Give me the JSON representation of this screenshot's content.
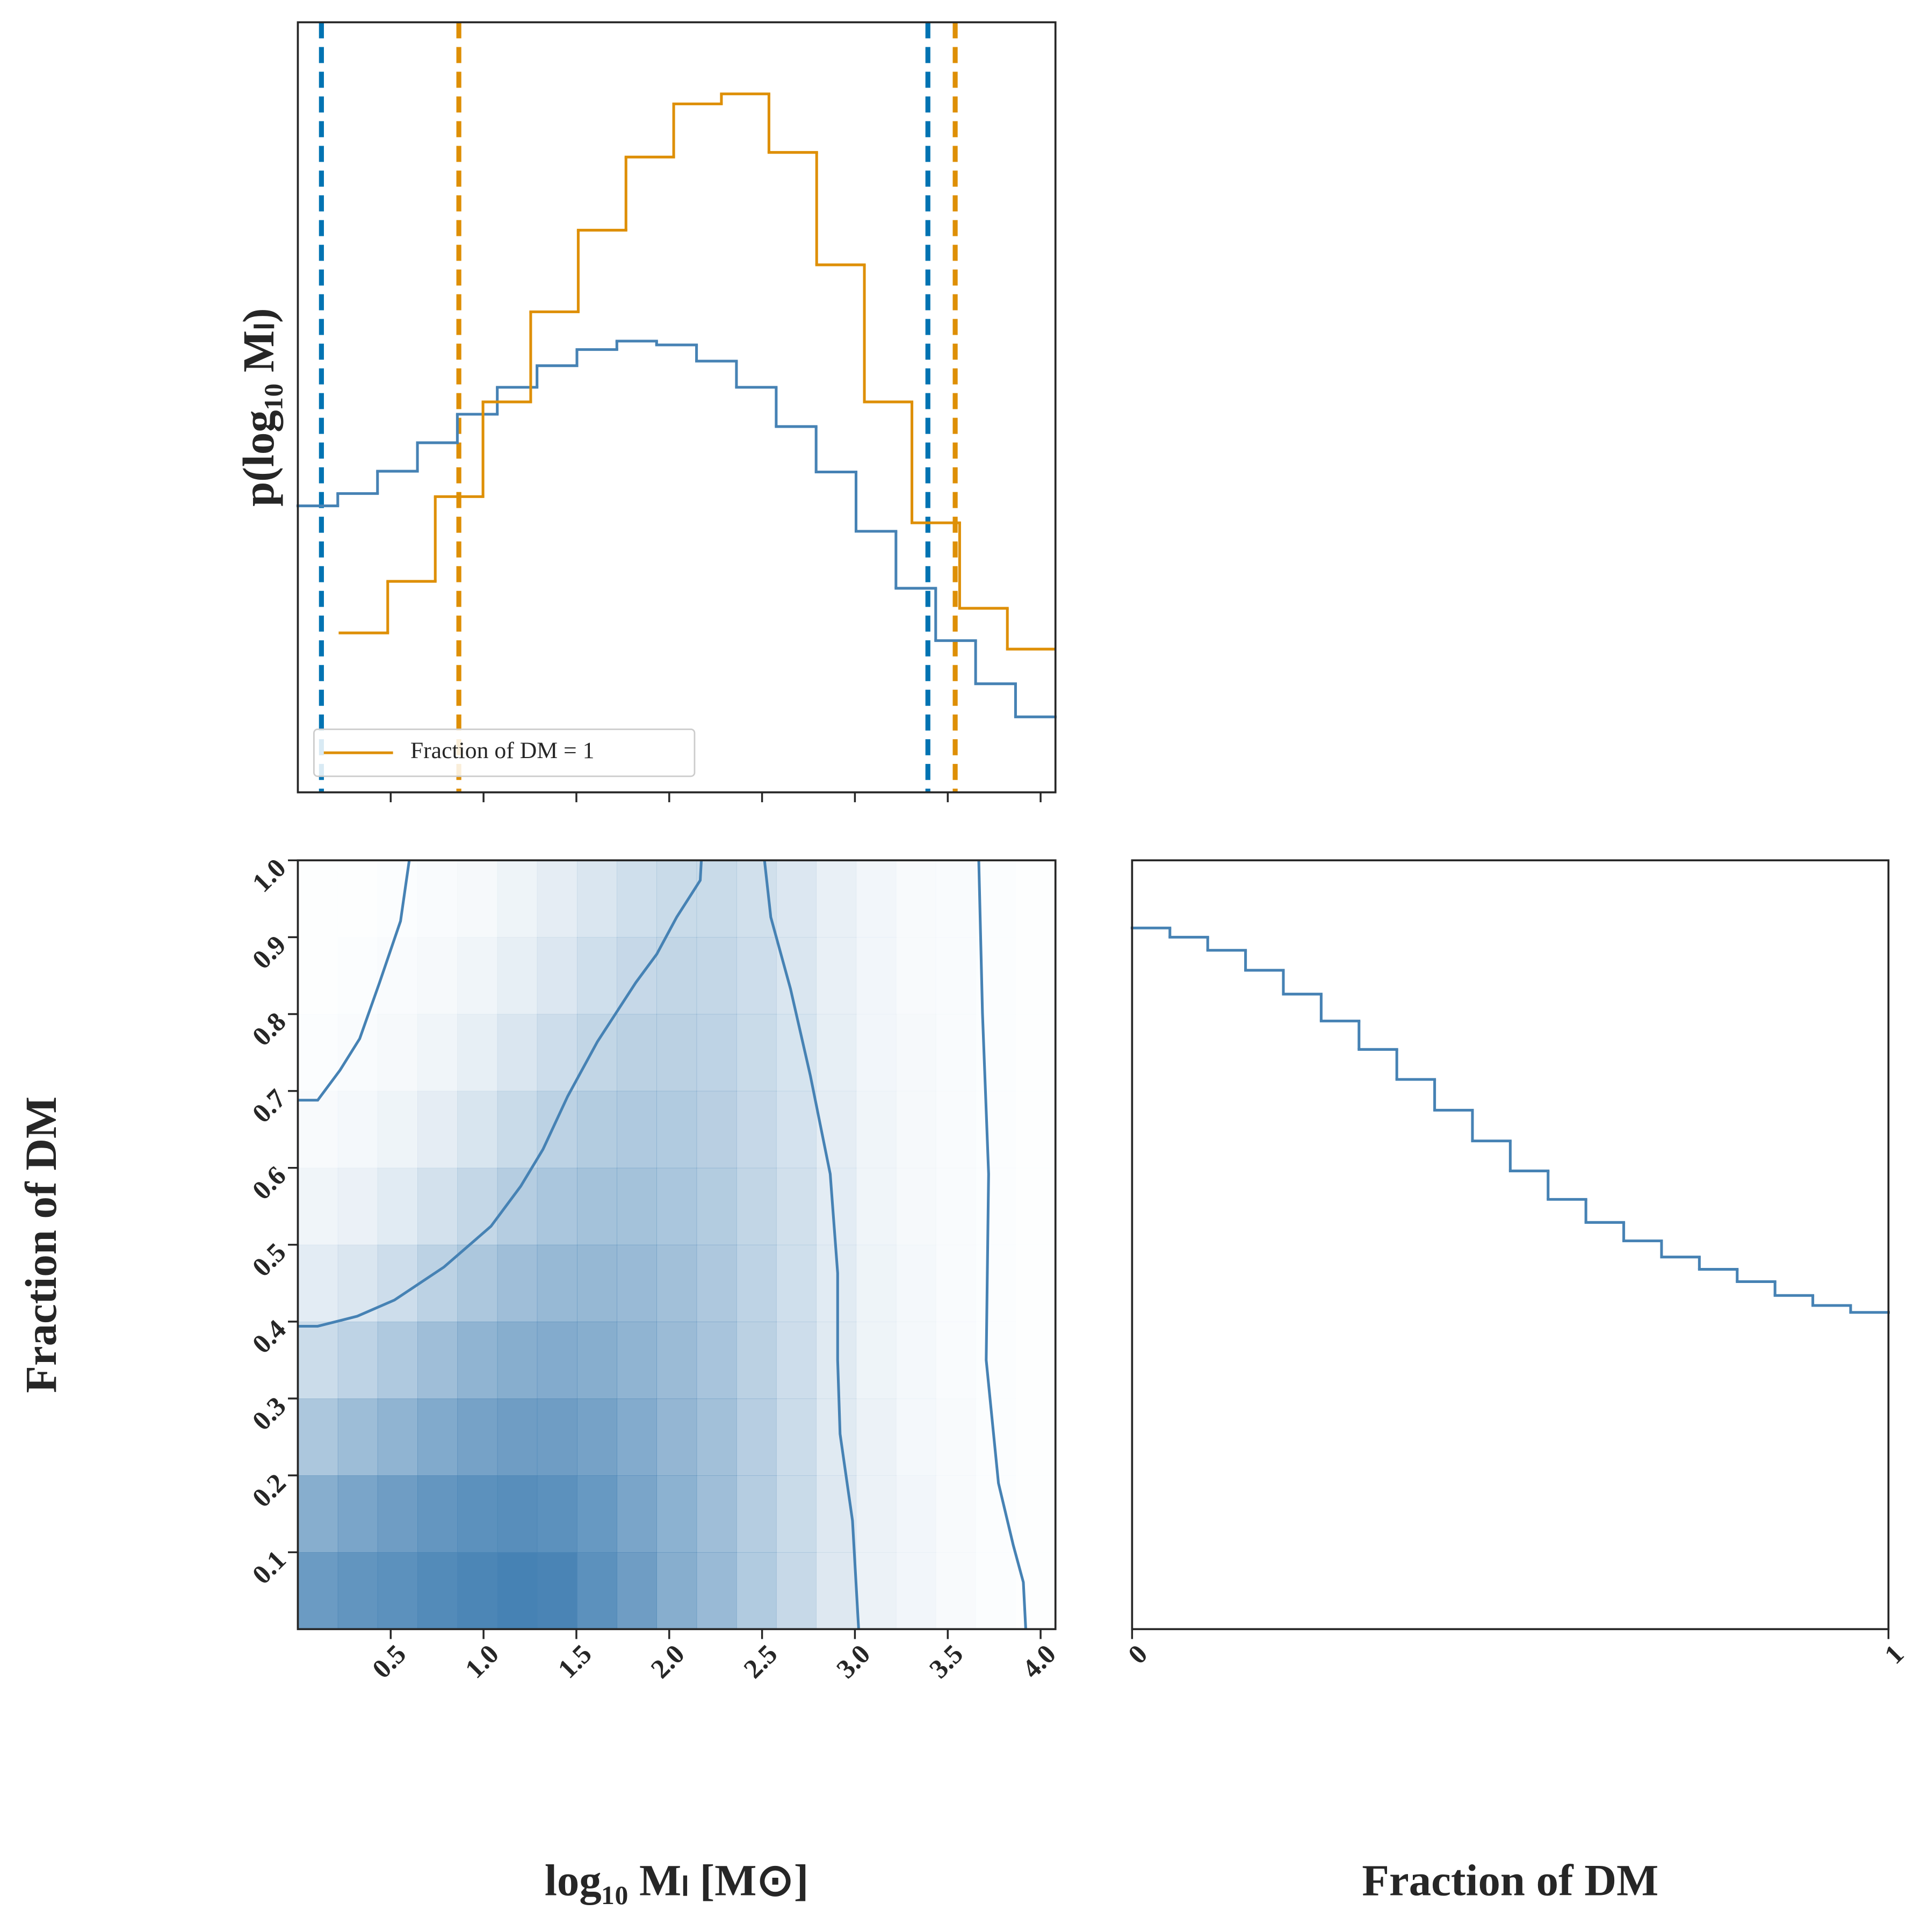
{
  "chart_data": [
    {
      "type": "step",
      "ylabel": "p(log₁₀ Mₗ)",
      "xlim": [
        0,
        4.08
      ],
      "ylim": [
        0,
        1
      ],
      "legend": "lower left",
      "series": [
        {
          "color": "#4682b4",
          "bins": [
            0,
            0.215,
            0.429,
            0.644,
            0.859,
            1.074,
            1.288,
            1.503,
            1.718,
            1.932,
            2.147,
            2.362,
            2.576,
            2.791,
            3.006,
            3.221,
            3.435,
            3.65,
            3.865,
            4.079
          ],
          "values": [
            0.372,
            0.388,
            0.417,
            0.454,
            0.491,
            0.526,
            0.554,
            0.575,
            0.586,
            0.581,
            0.56,
            0.526,
            0.475,
            0.416,
            0.339,
            0.265,
            0.197,
            0.141,
            0.098
          ]
        },
        {
          "name": "Fraction of DM = 1",
          "color": "#de8f05",
          "bins": [
            0.227,
            0.484,
            0.74,
            0.997,
            1.254,
            1.51,
            1.767,
            2.024,
            2.281,
            2.537,
            2.794,
            3.051,
            3.307,
            3.564,
            3.821,
            4.077
          ],
          "values": [
            0.207,
            0.274,
            0.384,
            0.507,
            0.624,
            0.73,
            0.825,
            0.894,
            0.907,
            0.831,
            0.685,
            0.507,
            0.35,
            0.239,
            0.186
          ]
        }
      ],
      "vlines": [
        {
          "x": 0.127,
          "color": "#0173b2"
        },
        {
          "x": 3.393,
          "color": "#0173b2"
        },
        {
          "x": 0.867,
          "color": "#de8f05"
        },
        {
          "x": 3.54,
          "color": "#de8f05"
        }
      ]
    },
    {
      "type": "heatmap",
      "xlabel": "log₁₀ Mₗ [M⊙]",
      "ylabel": "Fraction of DM",
      "xlim": [
        0,
        4.08
      ],
      "ylim": [
        0,
        1
      ],
      "xticks": [
        0.5,
        {
          "value": 1,
          "label": "1.0"
        },
        1.5,
        {
          "value": 2,
          "label": "2.0"
        },
        2.5,
        {
          "value": 3,
          "label": "3.0"
        },
        3.5,
        {
          "value": 4,
          "label": "4.0"
        }
      ],
      "yticks": [
        0.1,
        0.2,
        0.3,
        0.4,
        0.5,
        0.6,
        0.7,
        0.8,
        0.9,
        {
          "value": 1,
          "label": "1.0"
        }
      ],
      "color": "#4682b4",
      "xbins": [
        0,
        0.215,
        0.429,
        0.644,
        0.859,
        1.074,
        1.288,
        1.503,
        1.718,
        1.932,
        2.147,
        2.362,
        2.576,
        2.791,
        3.006,
        3.221,
        3.435,
        3.65,
        3.865,
        4.079
      ],
      "ybins": [
        0,
        0.1,
        0.2,
        0.3,
        0.4,
        0.5,
        0.6,
        0.7,
        0.8,
        0.9,
        1
      ],
      "z": [
        [
          0.8,
          0.85,
          0.88,
          0.93,
          0.97,
          1.0,
          0.98,
          0.88,
          0.78,
          0.65,
          0.55,
          0.42,
          0.3,
          0.18,
          0.1,
          0.07,
          0.04,
          0.02,
          0.01
        ],
        [
          0.65,
          0.72,
          0.78,
          0.84,
          0.88,
          0.9,
          0.88,
          0.82,
          0.72,
          0.62,
          0.52,
          0.4,
          0.29,
          0.18,
          0.1,
          0.07,
          0.04,
          0.02,
          0.01
        ],
        [
          0.45,
          0.53,
          0.6,
          0.68,
          0.74,
          0.78,
          0.78,
          0.74,
          0.67,
          0.58,
          0.5,
          0.39,
          0.28,
          0.17,
          0.1,
          0.06,
          0.04,
          0.02,
          0.01
        ],
        [
          0.28,
          0.35,
          0.43,
          0.52,
          0.6,
          0.65,
          0.67,
          0.65,
          0.6,
          0.54,
          0.47,
          0.37,
          0.27,
          0.17,
          0.09,
          0.06,
          0.03,
          0.02,
          0.01
        ],
        [
          0.15,
          0.2,
          0.27,
          0.36,
          0.45,
          0.52,
          0.56,
          0.57,
          0.55,
          0.5,
          0.44,
          0.35,
          0.26,
          0.16,
          0.09,
          0.06,
          0.03,
          0.02,
          0.01
        ],
        [
          0.08,
          0.11,
          0.16,
          0.24,
          0.32,
          0.4,
          0.46,
          0.49,
          0.49,
          0.46,
          0.41,
          0.33,
          0.25,
          0.15,
          0.08,
          0.05,
          0.03,
          0.02,
          0.01
        ],
        [
          0.04,
          0.06,
          0.09,
          0.14,
          0.21,
          0.29,
          0.36,
          0.41,
          0.43,
          0.42,
          0.38,
          0.31,
          0.23,
          0.14,
          0.08,
          0.05,
          0.03,
          0.02,
          0.01
        ],
        [
          0.02,
          0.03,
          0.05,
          0.08,
          0.13,
          0.2,
          0.27,
          0.33,
          0.37,
          0.37,
          0.35,
          0.29,
          0.22,
          0.13,
          0.07,
          0.05,
          0.03,
          0.02,
          0.01
        ],
        [
          0.01,
          0.02,
          0.03,
          0.05,
          0.08,
          0.13,
          0.19,
          0.26,
          0.31,
          0.33,
          0.32,
          0.27,
          0.2,
          0.12,
          0.07,
          0.04,
          0.03,
          0.02,
          0.01
        ],
        [
          0.01,
          0.01,
          0.02,
          0.03,
          0.05,
          0.09,
          0.14,
          0.2,
          0.26,
          0.29,
          0.29,
          0.25,
          0.19,
          0.12,
          0.07,
          0.04,
          0.03,
          0.02,
          0.01
        ]
      ],
      "contours": [
        {
          "color": "#4682b4",
          "x": [
            0,
            0.107,
            0.227,
            0.333,
            0.44,
            0.553,
            0.6
          ],
          "y": [
            0.688,
            0.688,
            0.727,
            0.768,
            0.841,
            0.921,
            1.0
          ]
        },
        {
          "color": "#4682b4",
          "x": [
            0,
            0.107,
            0.32,
            0.52,
            0.787,
            1.04,
            1.2,
            1.32,
            1.453,
            1.613,
            1.82,
            1.933,
            2.04,
            2.167,
            2.173
          ],
          "y": [
            0.394,
            0.394,
            0.407,
            0.428,
            0.471,
            0.524,
            0.576,
            0.624,
            0.693,
            0.764,
            0.841,
            0.878,
            0.926,
            0.974,
            1.0
          ]
        },
        {
          "color": "#4682b4",
          "x": [
            2.513,
            2.547,
            2.653,
            2.76,
            2.867,
            2.907,
            2.907,
            2.92,
            2.987,
            3.02
          ],
          "y": [
            1.0,
            0.926,
            0.833,
            0.72,
            0.592,
            0.463,
            0.35,
            0.254,
            0.141,
            0
          ]
        },
        {
          "color": "#4682b4",
          "x": [
            3.667,
            3.687,
            3.72,
            3.707,
            3.773,
            3.853,
            3.907,
            3.92
          ],
          "y": [
            1.0,
            0.801,
            0.592,
            0.35,
            0.19,
            0.109,
            0.061,
            0
          ]
        }
      ]
    },
    {
      "type": "step",
      "xlabel": "Fraction of DM",
      "xlim": [
        0,
        1
      ],
      "ylim": [
        0,
        1
      ],
      "xticks": [
        0,
        1
      ],
      "series": [
        {
          "color": "#4682b4",
          "bins": [
            0,
            0.05,
            0.1,
            0.15,
            0.2,
            0.25,
            0.3,
            0.35,
            0.4,
            0.45,
            0.5,
            0.55,
            0.6,
            0.65,
            0.7,
            0.75,
            0.8,
            0.85,
            0.9,
            0.95,
            1
          ],
          "values": [
            0.912,
            0.9,
            0.883,
            0.857,
            0.826,
            0.791,
            0.754,
            0.715,
            0.675,
            0.635,
            0.596,
            0.559,
            0.529,
            0.505,
            0.484,
            0.468,
            0.452,
            0.434,
            0.421,
            0.412
          ]
        }
      ]
    }
  ]
}
